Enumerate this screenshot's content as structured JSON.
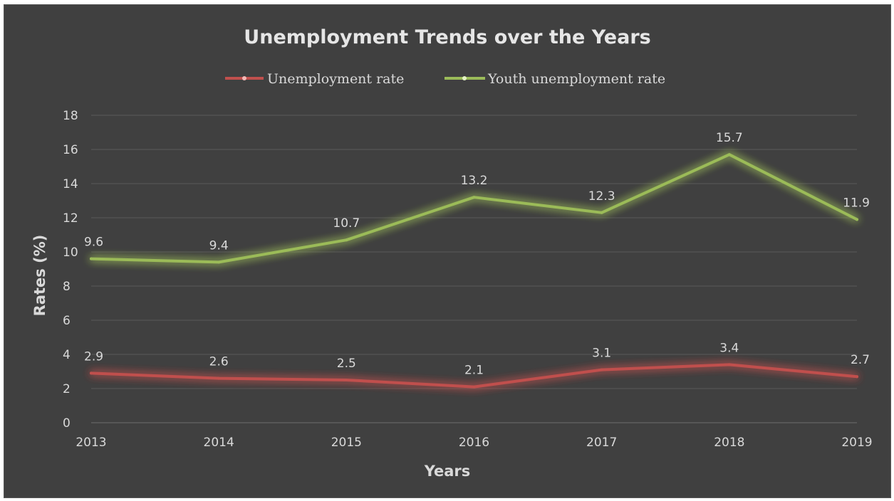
{
  "chart_data": {
    "type": "line",
    "title": "Unemployment Trends over the Years",
    "xlabel": "Years",
    "ylabel": "Rates (%)",
    "ylim": [
      0,
      18
    ],
    "yticks": [
      0,
      2,
      4,
      6,
      8,
      10,
      12,
      14,
      16,
      18
    ],
    "grid": true,
    "legend_position": "top",
    "x": [
      "2013",
      "2014",
      "2015",
      "2016",
      "2017",
      "2018",
      "2019"
    ],
    "series": [
      {
        "name": "Unemployment rate",
        "color": "#c0504d",
        "values": [
          2.9,
          2.6,
          2.5,
          2.1,
          3.1,
          3.4,
          2.7
        ],
        "labels": [
          "2.9",
          "2.6",
          "2.5",
          "2.1",
          "3.1",
          "3.4",
          "2.7"
        ]
      },
      {
        "name": "Youth unemployment rate",
        "color": "#9bbb59",
        "values": [
          9.6,
          9.4,
          10.7,
          13.2,
          12.3,
          15.7,
          11.9
        ],
        "labels": [
          "9.6",
          "9.4",
          "10.7",
          "13.2",
          "12.3",
          "15.7",
          "11.9"
        ]
      }
    ]
  }
}
